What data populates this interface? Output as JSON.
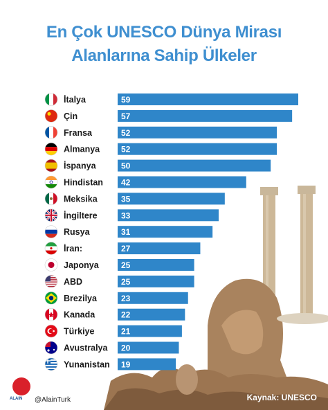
{
  "header": {
    "title_line1": "En Çok UNESCO Dünya Mirası",
    "title_line2": "Alanlarına Sahip Ülkeler"
  },
  "chart_data": {
    "type": "bar",
    "orientation": "horizontal",
    "categories": [
      "İtalya",
      "Çin",
      "Fransa",
      "Almanya",
      "İspanya",
      "Hindistan",
      "Meksika",
      "İngiltere",
      "Rusya",
      "İran:",
      "Japonya",
      "ABD",
      "Brezilya",
      "Kanada",
      "Türkiye",
      "Avustralya",
      "Yunanistan"
    ],
    "values": [
      59,
      57,
      52,
      52,
      50,
      42,
      35,
      33,
      31,
      27,
      25,
      25,
      23,
      22,
      21,
      20,
      19
    ],
    "flags": [
      "italy-flag-icon",
      "china-flag-icon",
      "france-flag-icon",
      "germany-flag-icon",
      "spain-flag-icon",
      "india-flag-icon",
      "mexico-flag-icon",
      "uk-flag-icon",
      "russia-flag-icon",
      "iran-flag-icon",
      "japan-flag-icon",
      "usa-flag-icon",
      "brazil-flag-icon",
      "canada-flag-icon",
      "turkey-flag-icon",
      "australia-flag-icon",
      "greece-flag-icon"
    ],
    "bar_color": "#2f86c9",
    "value_label_color": "#ffffff",
    "xlim": [
      0,
      59
    ]
  },
  "footer": {
    "brand": "ALAIN",
    "handle": "@AlainTurk",
    "source": "Kaynak: UNESCO"
  },
  "colors": {
    "title": "#3f8fd0",
    "stone": "#b08a63"
  }
}
